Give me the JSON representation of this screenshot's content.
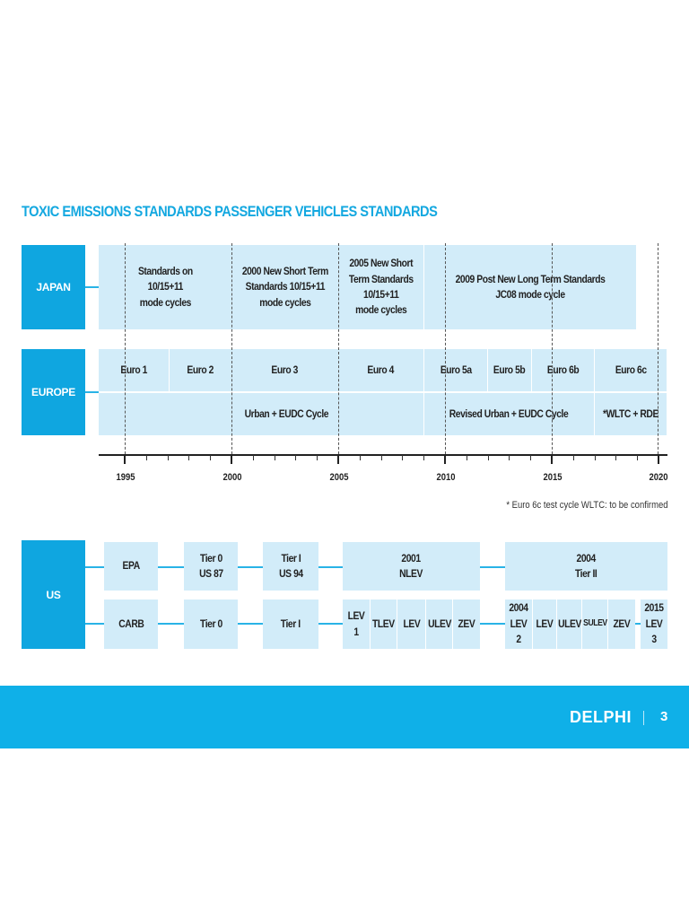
{
  "title": "TOXIC EMISSIONS STANDARDS PASSENGER VEHICLES STANDARDS",
  "colors": {
    "accent": "#0fa6e0",
    "cell": "#d2ecf9",
    "footer": "#0fb0e8",
    "text": "#222222"
  },
  "japan": {
    "label": "JAPAN",
    "cells": [
      "Standards on\n10/15+11\nmode cycles",
      "2000 New Short Term\nStandards 10/15+11\nmode cycles",
      "2005 New Short\nTerm Standards\n10/15+11\nmode cycles",
      "2009 Post New Long Term Standards\nJC08 mode cycle"
    ]
  },
  "europe": {
    "label": "EUROPE",
    "stages": [
      "Euro 1",
      "Euro 2",
      "Euro 3",
      "Euro 4",
      "Euro 5a",
      "Euro 5b",
      "Euro 6b",
      "Euro 6c"
    ],
    "cycles": [
      "Urban + EUDC Cycle",
      "Revised Urban + EUDC Cycle",
      "*WLTC + RDE"
    ]
  },
  "timeline": {
    "years": [
      "1995",
      "2000",
      "2005",
      "2010",
      "2015",
      "2020"
    ],
    "note": "* Euro 6c test cycle WLTC: to be confirmed"
  },
  "us": {
    "label": "US",
    "epa": {
      "label": "EPA",
      "stages": [
        "Tier 0\nUS 87",
        "Tier I\nUS 94",
        "2001\nNLEV",
        "2004\nTier II"
      ]
    },
    "carb": {
      "label": "CARB",
      "stages": [
        "Tier 0",
        "Tier I"
      ],
      "lev1": [
        "LEV 1",
        "TLEV",
        "LEV",
        "ULEV",
        "ZEV"
      ],
      "lev2": [
        "2004\nLEV 2",
        "LEV",
        "ULEV",
        "SULEV",
        "ZEV"
      ],
      "lev3": "2015\nLEV 3"
    }
  },
  "footer": {
    "logo": "DELPHI",
    "page": "3"
  }
}
